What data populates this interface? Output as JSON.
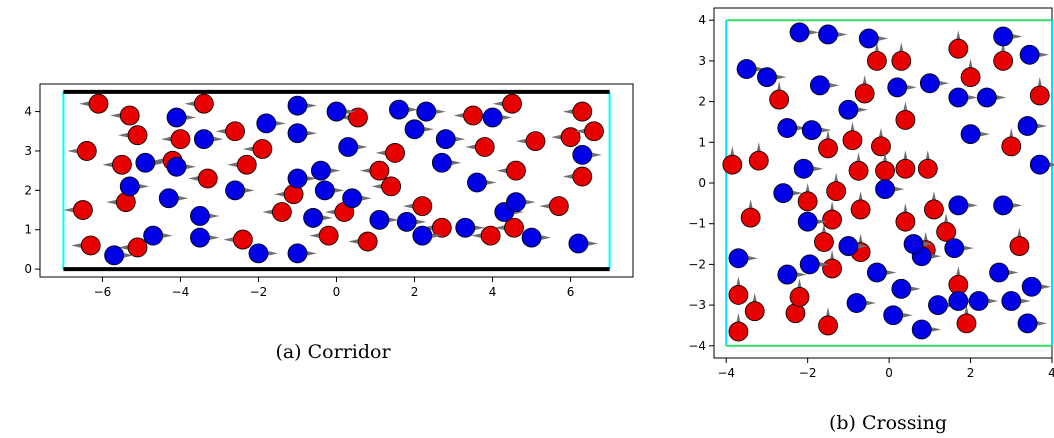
{
  "chart_data": [
    {
      "type": "scatter",
      "caption": "(a) Corridor",
      "xlim": [
        -7.6,
        7.6
      ],
      "ylim": [
        -0.2,
        4.7
      ],
      "xticks": [
        "−6",
        "−4",
        "−2",
        "0",
        "2",
        "4",
        "6"
      ],
      "xtick_values": [
        -6,
        -4,
        -2,
        0,
        2,
        4,
        6
      ],
      "yticks": [
        "0",
        "1",
        "2",
        "3",
        "4"
      ],
      "ytick_values": [
        0,
        1,
        2,
        3,
        4
      ],
      "walls": {
        "y_bottom": 0,
        "y_top": 4.5,
        "x_left": -7,
        "x_right": 7
      },
      "colors": {
        "red": "#e60000",
        "blue": "#0000e6",
        "arrow": "#707070",
        "wall": "#000000",
        "door": "#00ffff"
      },
      "series": [
        {
          "color": "red",
          "heading": "left",
          "points": [
            [
              -6.3,
              0.6
            ],
            [
              -5.1,
              0.55
            ],
            [
              -2.4,
              0.75
            ],
            [
              -0.2,
              0.85
            ],
            [
              0.8,
              0.7
            ],
            [
              2.7,
              1.05
            ],
            [
              3.95,
              0.85
            ],
            [
              4.55,
              1.05
            ],
            [
              -6.5,
              1.5
            ],
            [
              -5.4,
              1.7
            ],
            [
              -3.3,
              2.3
            ],
            [
              -1.1,
              1.9
            ],
            [
              0.2,
              1.45
            ],
            [
              1.4,
              2.1
            ],
            [
              2.2,
              1.6
            ],
            [
              5.7,
              1.6
            ],
            [
              -5.5,
              2.65
            ],
            [
              -4.2,
              2.75
            ],
            [
              -2.3,
              2.65
            ],
            [
              -1.9,
              3.05
            ],
            [
              1.1,
              2.5
            ],
            [
              1.5,
              2.95
            ],
            [
              3.8,
              3.1
            ],
            [
              4.6,
              2.5
            ],
            [
              6.3,
              2.35
            ],
            [
              -6.4,
              3.0
            ],
            [
              -4.0,
              3.3
            ],
            [
              -2.6,
              3.5
            ],
            [
              0.55,
              3.85
            ],
            [
              3.5,
              3.9
            ],
            [
              5.1,
              3.25
            ],
            [
              6.0,
              3.35
            ],
            [
              6.6,
              3.5
            ],
            [
              -6.1,
              4.2
            ],
            [
              -5.3,
              3.9
            ],
            [
              -5.1,
              3.4
            ],
            [
              -3.4,
              4.2
            ],
            [
              4.5,
              4.2
            ],
            [
              6.3,
              4.0
            ],
            [
              -1.4,
              1.45
            ]
          ]
        },
        {
          "color": "blue",
          "heading": "right",
          "points": [
            [
              -5.7,
              0.35
            ],
            [
              -4.7,
              0.85
            ],
            [
              -3.5,
              0.8
            ],
            [
              -2.0,
              0.4
            ],
            [
              -1.0,
              0.4
            ],
            [
              1.8,
              1.2
            ],
            [
              2.2,
              0.85
            ],
            [
              3.3,
              1.05
            ],
            [
              5.0,
              0.8
            ],
            [
              6.2,
              0.65
            ],
            [
              -5.3,
              2.1
            ],
            [
              -4.9,
              2.7
            ],
            [
              -4.1,
              2.6
            ],
            [
              -2.6,
              2.0
            ],
            [
              -1.0,
              2.3
            ],
            [
              -0.4,
              2.5
            ],
            [
              0.4,
              1.8
            ],
            [
              1.1,
              1.25
            ],
            [
              -3.5,
              1.35
            ],
            [
              -0.6,
              1.3
            ],
            [
              -1.0,
              3.45
            ],
            [
              0.3,
              3.1
            ],
            [
              2.0,
              3.55
            ],
            [
              2.8,
              3.3
            ],
            [
              3.6,
              2.2
            ],
            [
              2.7,
              2.7
            ],
            [
              -4.1,
              3.85
            ],
            [
              -3.4,
              3.3
            ],
            [
              -1.8,
              3.7
            ],
            [
              -1.0,
              4.15
            ],
            [
              0.0,
              4.0
            ],
            [
              1.6,
              4.05
            ],
            [
              2.3,
              4.0
            ],
            [
              4.0,
              3.85
            ],
            [
              4.3,
              1.45
            ],
            [
              4.6,
              1.7
            ],
            [
              6.3,
              2.9
            ],
            [
              -4.3,
              1.8
            ],
            [
              -0.3,
              2.0
            ]
          ]
        }
      ]
    },
    {
      "type": "scatter",
      "caption": "(b) Crossing",
      "xlim": [
        -4.3,
        4.0
      ],
      "ylim": [
        -4.3,
        4.3
      ],
      "xticks": [
        "−4",
        "−2",
        "0",
        "2",
        "4"
      ],
      "xtick_values": [
        -4,
        -2,
        0,
        2,
        4
      ],
      "yticks": [
        "−4",
        "−3",
        "−2",
        "−1",
        "0",
        "1",
        "2",
        "3",
        "4"
      ],
      "ytick_values": [
        -4,
        -3,
        -2,
        -1,
        0,
        1,
        2,
        3,
        4
      ],
      "walls": {
        "x_left": -4,
        "x_right": 4,
        "y_bottom": -4,
        "y_top": 4
      },
      "colors": {
        "red": "#e60000",
        "blue": "#0000e6",
        "arrow": "#707070",
        "wall": "#00e0ff",
        "door": "#33dd66"
      },
      "series": [
        {
          "color": "red",
          "heading": "up",
          "points": [
            [
              -3.7,
              -3.65
            ],
            [
              -3.3,
              -3.15
            ],
            [
              -2.3,
              -3.2
            ],
            [
              -1.5,
              -3.5
            ],
            [
              1.9,
              -3.45
            ],
            [
              -3.7,
              -2.75
            ],
            [
              -2.2,
              -2.8
            ],
            [
              1.7,
              -2.5
            ],
            [
              -1.4,
              -2.1
            ],
            [
              -0.7,
              -1.7
            ],
            [
              -1.6,
              -1.45
            ],
            [
              0.9,
              -1.65
            ],
            [
              1.4,
              -1.2
            ],
            [
              3.2,
              -1.55
            ],
            [
              -3.4,
              -0.85
            ],
            [
              -1.4,
              -0.9
            ],
            [
              -0.7,
              -0.65
            ],
            [
              0.4,
              -0.95
            ],
            [
              1.1,
              -0.65
            ],
            [
              -2.0,
              -0.45
            ],
            [
              -1.3,
              -0.2
            ],
            [
              -3.85,
              0.45
            ],
            [
              -3.2,
              0.55
            ],
            [
              -1.5,
              0.85
            ],
            [
              -0.9,
              1.05
            ],
            [
              -0.2,
              0.9
            ],
            [
              -0.1,
              0.3
            ],
            [
              -0.75,
              0.3
            ],
            [
              0.4,
              0.35
            ],
            [
              0.95,
              0.35
            ],
            [
              0.4,
              1.55
            ],
            [
              -0.6,
              2.2
            ],
            [
              -0.3,
              3.0
            ],
            [
              0.3,
              3.0
            ],
            [
              1.7,
              3.3
            ],
            [
              2.0,
              2.6
            ],
            [
              2.8,
              3.0
            ],
            [
              3.7,
              2.15
            ],
            [
              3.0,
              0.9
            ],
            [
              -2.7,
              2.05
            ]
          ]
        },
        {
          "color": "blue",
          "heading": "right",
          "points": [
            [
              -3.7,
              -1.85
            ],
            [
              -2.5,
              -2.25
            ],
            [
              -1.95,
              -2.0
            ],
            [
              -0.3,
              -2.2
            ],
            [
              -0.8,
              -2.95
            ],
            [
              0.1,
              -3.25
            ],
            [
              0.8,
              -3.6
            ],
            [
              1.2,
              -3.0
            ],
            [
              1.7,
              -2.9
            ],
            [
              2.2,
              -2.9
            ],
            [
              3.0,
              -2.9
            ],
            [
              3.4,
              -3.45
            ],
            [
              3.5,
              -2.55
            ],
            [
              2.7,
              -2.2
            ],
            [
              0.3,
              -2.6
            ],
            [
              0.8,
              -1.8
            ],
            [
              -1.0,
              -1.55
            ],
            [
              0.6,
              -1.5
            ],
            [
              1.6,
              -1.6
            ],
            [
              -2.0,
              -0.95
            ],
            [
              -2.6,
              -0.25
            ],
            [
              -0.1,
              -0.15
            ],
            [
              1.7,
              -0.55
            ],
            [
              2.8,
              -0.55
            ],
            [
              -2.1,
              0.35
            ],
            [
              -1.0,
              1.8
            ],
            [
              0.2,
              2.35
            ],
            [
              1.0,
              2.45
            ],
            [
              1.7,
              2.1
            ],
            [
              2.4,
              2.1
            ],
            [
              2.0,
              1.2
            ],
            [
              3.4,
              1.4
            ],
            [
              3.7,
              0.45
            ],
            [
              -2.5,
              1.35
            ],
            [
              -1.9,
              1.3
            ],
            [
              -3.5,
              2.8
            ],
            [
              -3.0,
              2.6
            ],
            [
              -1.7,
              2.4
            ],
            [
              -2.2,
              3.7
            ],
            [
              -1.5,
              3.65
            ],
            [
              -0.5,
              3.55
            ],
            [
              2.8,
              3.6
            ],
            [
              3.45,
              3.15
            ]
          ]
        }
      ]
    }
  ]
}
